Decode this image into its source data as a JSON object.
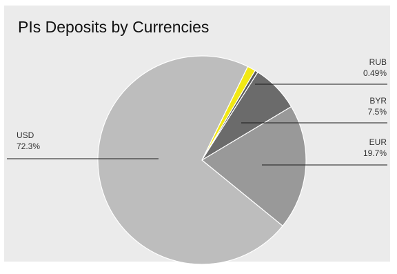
{
  "chart_data": {
    "type": "pie",
    "title": "PIs Deposits by Currencies",
    "slices": [
      {
        "name": "USD",
        "label": "72.3%",
        "value": 72.3,
        "color": "#bdbdbd"
      },
      {
        "name": "EUR",
        "label": "19.7%",
        "value": 19.7,
        "color": "#999999"
      },
      {
        "name": "BYR",
        "label": "7.5%",
        "value": 7.5,
        "color": "#6b6b6b"
      },
      {
        "name": "RUB",
        "label": "0.49%",
        "value": 0.49,
        "color": "#5a5a5a"
      },
      {
        "name": "",
        "label": "",
        "value": 1.3,
        "color": "#f2e814"
      }
    ],
    "legend": "none"
  }
}
